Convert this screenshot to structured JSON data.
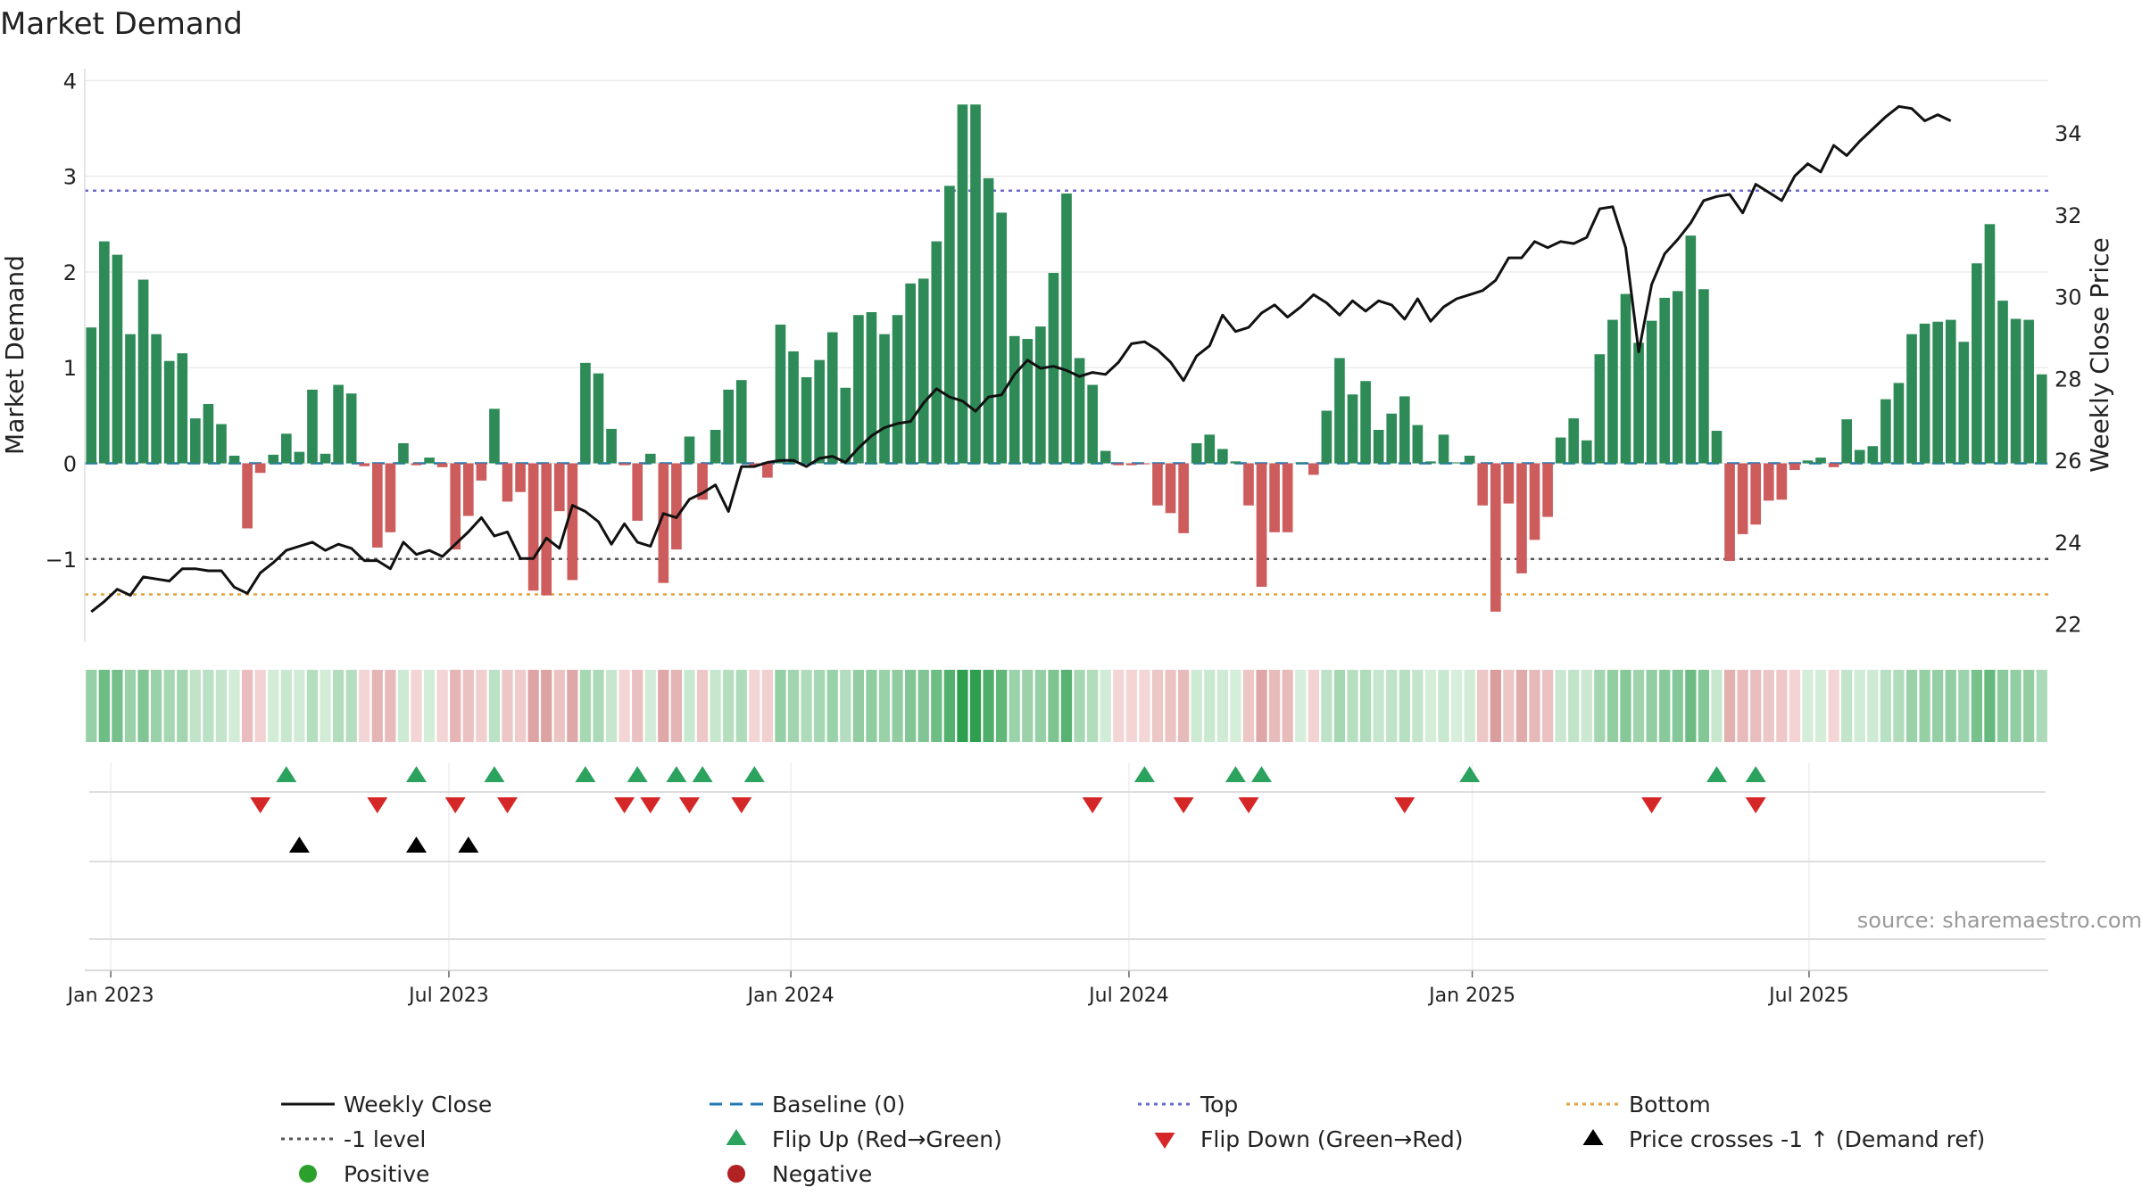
{
  "chart_data": {
    "type": "bar",
    "title": "Market Demand",
    "ylabel_left": "Market Demand",
    "ylabel_right": "Weekly Close Price",
    "ylim_left": [
      -1.85,
      4.05
    ],
    "ylim_right": [
      21.6,
      35.4
    ],
    "yticks_left": [
      {
        "v": 4,
        "label": "4"
      },
      {
        "v": 3,
        "label": "3"
      },
      {
        "v": 2,
        "label": "2"
      },
      {
        "v": 1,
        "label": "1"
      },
      {
        "v": 0,
        "label": "0"
      },
      {
        "v": -1,
        "label": "−1"
      }
    ],
    "yticks_right": [
      {
        "v": 34,
        "label": "34"
      },
      {
        "v": 32,
        "label": "32"
      },
      {
        "v": 30,
        "label": "30"
      },
      {
        "v": 28,
        "label": "28"
      },
      {
        "v": 26,
        "label": "26"
      },
      {
        "v": 24,
        "label": "24"
      },
      {
        "v": 22,
        "label": "22"
      }
    ],
    "xticks": [
      {
        "week": 1.5,
        "label": "Jan 2023"
      },
      {
        "week": 27.5,
        "label": "Jul 2023"
      },
      {
        "week": 53.8,
        "label": "Jan 2024"
      },
      {
        "week": 79.8,
        "label": "Jul 2024"
      },
      {
        "week": 106.2,
        "label": "Jan 2025"
      },
      {
        "week": 132.1,
        "label": "Jul 2025"
      }
    ],
    "reference_lines": {
      "top": 2.85,
      "minus_one": -1,
      "bottom": -1.37,
      "baseline": 0
    },
    "demand": [
      1.42,
      2.32,
      2.18,
      1.35,
      1.92,
      1.35,
      1.07,
      1.15,
      0.47,
      0.62,
      0.41,
      0.08,
      -0.68,
      -0.1,
      0.09,
      0.31,
      0.12,
      0.77,
      0.1,
      0.82,
      0.73,
      -0.03,
      -0.88,
      -0.72,
      0.21,
      -0.02,
      0.06,
      -0.04,
      -0.9,
      -0.55,
      -0.18,
      0.57,
      -0.4,
      -0.3,
      -1.33,
      -1.38,
      -0.5,
      -1.22,
      1.05,
      0.94,
      0.36,
      -0.02,
      -0.6,
      0.1,
      -1.25,
      -0.9,
      0.28,
      -0.38,
      0.35,
      0.77,
      0.87,
      -0.02,
      -0.15,
      1.45,
      1.17,
      0.9,
      1.08,
      1.37,
      0.79,
      1.55,
      1.58,
      1.35,
      1.55,
      1.88,
      1.93,
      2.32,
      2.9,
      3.75,
      3.75,
      2.98,
      2.62,
      1.33,
      1.3,
      1.43,
      1.99,
      2.82,
      1.1,
      0.82,
      0.13,
      -0.02,
      -0.02,
      -0.01,
      -0.44,
      -0.52,
      -0.73,
      0.21,
      0.3,
      0.15,
      0.02,
      -0.44,
      -1.29,
      -0.72,
      -0.72,
      0.01,
      -0.12,
      0.55,
      1.1,
      0.72,
      0.86,
      0.35,
      0.52,
      0.7,
      0.4,
      0.02,
      0.3,
      0.01,
      0.08,
      -0.44,
      -1.55,
      -0.42,
      -1.15,
      -0.8,
      -0.56,
      0.27,
      0.47,
      0.24,
      1.14,
      1.5,
      1.77,
      1.26,
      1.49,
      1.73,
      1.8,
      2.38,
      1.82,
      0.34,
      -1.02,
      -0.74,
      -0.64,
      -0.39,
      -0.38,
      -0.07,
      0.03,
      0.06,
      -0.04,
      0.46,
      0.14,
      0.18,
      0.67,
      0.84,
      1.35,
      1.46,
      1.48,
      1.5,
      1.27,
      2.09,
      2.5,
      1.7,
      1.51,
      1.5,
      0.93
    ],
    "weekly_close": [
      22.3,
      22.55,
      22.85,
      22.7,
      23.15,
      23.1,
      23.05,
      23.35,
      23.35,
      23.3,
      23.3,
      22.9,
      22.75,
      23.25,
      23.5,
      23.8,
      23.9,
      24.0,
      23.8,
      23.95,
      23.85,
      23.55,
      23.55,
      23.35,
      24.0,
      23.7,
      23.8,
      23.65,
      23.95,
      24.25,
      24.6,
      24.15,
      24.25,
      23.6,
      23.6,
      24.1,
      23.85,
      24.9,
      24.75,
      24.5,
      23.95,
      24.45,
      24.0,
      23.9,
      24.7,
      24.6,
      25.05,
      25.2,
      25.4,
      24.75,
      25.85,
      25.85,
      25.95,
      26.0,
      26.0,
      25.85,
      26.05,
      26.1,
      25.95,
      26.3,
      26.6,
      26.8,
      26.9,
      26.95,
      27.4,
      27.75,
      27.55,
      27.45,
      27.2,
      27.55,
      27.6,
      28.1,
      28.45,
      28.25,
      28.3,
      28.2,
      28.05,
      28.15,
      28.1,
      28.4,
      28.85,
      28.9,
      28.7,
      28.4,
      27.95,
      28.55,
      28.8,
      29.55,
      29.15,
      29.25,
      29.6,
      29.8,
      29.5,
      29.75,
      30.05,
      29.85,
      29.55,
      29.9,
      29.65,
      29.9,
      29.8,
      29.45,
      29.95,
      29.4,
      29.75,
      29.95,
      30.05,
      30.15,
      30.4,
      30.95,
      30.95,
      31.35,
      31.2,
      31.35,
      31.3,
      31.45,
      32.15,
      32.2,
      31.2,
      28.65,
      30.3,
      31.05,
      31.4,
      31.8,
      32.35,
      32.45,
      32.5,
      32.05,
      32.75,
      32.55,
      32.35,
      32.95,
      33.25,
      33.05,
      33.7,
      33.45,
      33.8,
      34.1,
      34.4,
      34.65,
      34.6,
      34.3,
      34.45,
      34.3
    ],
    "heat_row_label": "",
    "flip_up_weeks": [
      15,
      25,
      31,
      38,
      42,
      45,
      47,
      51,
      81,
      88,
      90,
      106,
      125,
      128
    ],
    "flip_down_weeks": [
      13,
      22,
      28,
      32,
      41,
      43,
      46,
      50,
      77,
      84,
      89,
      101,
      120,
      128
    ],
    "price_cross_weeks": [
      16,
      25,
      29
    ],
    "source_note": "source: sharemaestro.com",
    "legend": [
      {
        "label": "Weekly Close",
        "kind": "line",
        "color": "#111111"
      },
      {
        "label": "Baseline (0)",
        "kind": "dash",
        "color": "#1f77b4"
      },
      {
        "label": "Top",
        "kind": "dot",
        "color": "#6a6acd"
      },
      {
        "label": "Bottom",
        "kind": "dot",
        "color": "#e3a23a"
      },
      {
        "label": "-1 level",
        "kind": "dot",
        "color": "#555555"
      },
      {
        "label": "Flip Up (Red→Green)",
        "kind": "tri-up",
        "color": "#2ca25f"
      },
      {
        "label": "Flip Down (Green→Red)",
        "kind": "tri-down",
        "color": "#d62728"
      },
      {
        "label": "Price crosses -1 ↑ (Demand ref)",
        "kind": "tri-up",
        "color": "#000000"
      },
      {
        "label": "Positive",
        "kind": "circle",
        "color": "#2ca02c"
      },
      {
        "label": "Negative",
        "kind": "circle",
        "color": "#b22222"
      }
    ],
    "colors": {
      "positive_bar": "#2e8b57",
      "negative_bar": "#cd5c5c",
      "close_line": "#111111",
      "baseline": "#1f77b4",
      "top": "#6a6acd",
      "minus_one": "#555555",
      "bottom": "#e3a23a",
      "flip_up": "#2ca25f",
      "flip_down": "#d62728",
      "price_cross": "#000000"
    }
  }
}
